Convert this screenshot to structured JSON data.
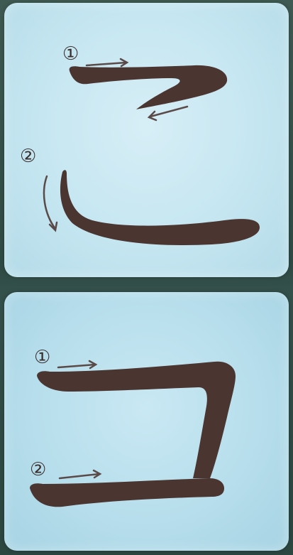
{
  "panels": [
    {
      "character": "こ",
      "strokes": [
        {
          "order_label": "①"
        },
        {
          "order_label": "②"
        }
      ]
    },
    {
      "character": "コ",
      "strokes": [
        {
          "order_label": "①"
        },
        {
          "order_label": "②"
        }
      ]
    }
  ],
  "colors": {
    "ink": "#4a3530",
    "arrow": "#5a4a48",
    "card_top": "#cbe9f3",
    "card_bottom": "#b8dfec",
    "background": "#36514a"
  }
}
